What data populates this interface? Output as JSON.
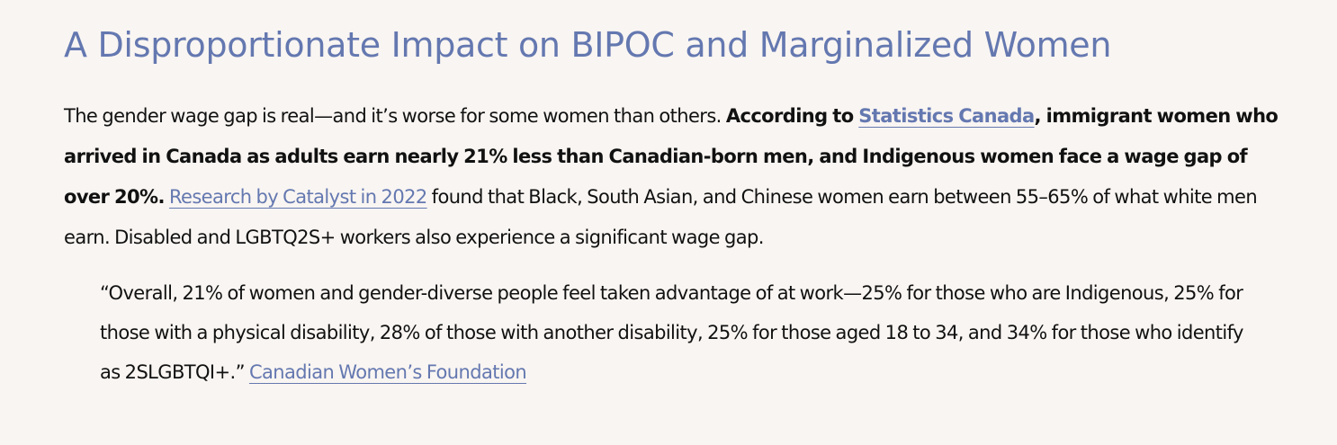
{
  "heading": "A Disproportionate Impact on BIPOC and Marginalized Women",
  "paragraph": {
    "intro": "The gender wage gap is real—and it’s worse for some women than others. ",
    "bold_prefix": "According to ",
    "statcan_link": "Statistics Canada",
    "bold_rest": ", immigrant women who arrived in Canada as adults earn nearly 21% less than Canadian-born men, and Indigenous women face a wage gap of over 20%.",
    "space": " ",
    "catalyst_link": "Research by Catalyst in 2022",
    "tail": " found that Black, South Asian, and Chinese women earn between 55–65% of what white men earn. Disabled and LGBTQ2S+ workers also experience a significant wage gap."
  },
  "quote": {
    "text": "“Overall, 21% of women and gender-diverse people feel taken advantage of at work—25% for those who are Indigenous, 25% for those with a physical disability, 28% of those with another disability, 25% for those aged 18 to 34, and 34% for those who identify as 2SLGBTQI+.” ",
    "source_link": "Canadian Women’s Foundation"
  },
  "colors": {
    "background": "#f9f5f2",
    "accent": "#6478b0",
    "text": "#111111"
  }
}
